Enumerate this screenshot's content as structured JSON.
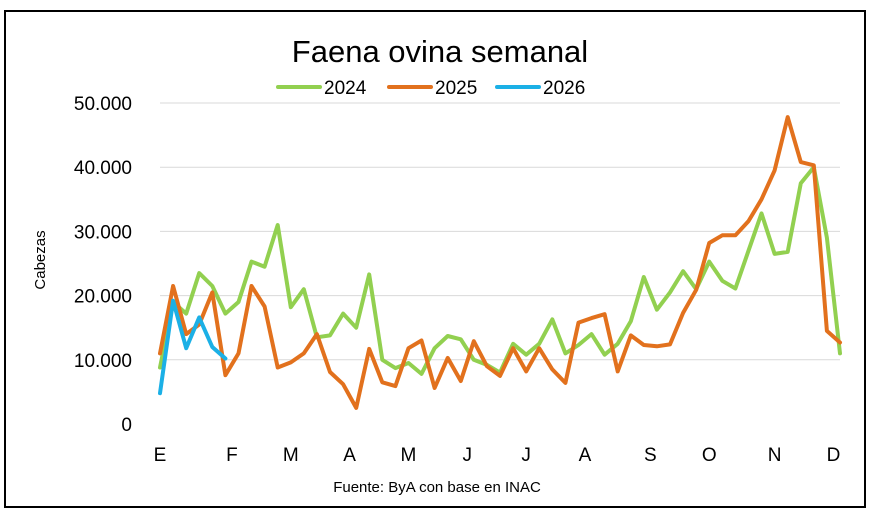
{
  "chart_data": {
    "type": "line",
    "title": "Faena ovina semanal",
    "ylabel": "Cabezas",
    "xlabel": "",
    "source": "Fuente: ByA con base en INAC",
    "ylim": [
      0,
      50000
    ],
    "yticks": [
      {
        "value": 0,
        "label": "0"
      },
      {
        "value": 10000,
        "label": "10.000"
      },
      {
        "value": 20000,
        "label": "20.000"
      },
      {
        "value": 30000,
        "label": "30.000"
      },
      {
        "value": 40000,
        "label": "40.000"
      },
      {
        "value": 50000,
        "label": "50.000"
      }
    ],
    "weeks": 53,
    "xticks": [
      {
        "week": 1,
        "label": "E"
      },
      {
        "week": 6.5,
        "label": "F"
      },
      {
        "week": 11,
        "label": "M"
      },
      {
        "week": 15.5,
        "label": "A"
      },
      {
        "week": 20,
        "label": "M"
      },
      {
        "week": 24.5,
        "label": "J"
      },
      {
        "week": 29,
        "label": "J"
      },
      {
        "week": 33.5,
        "label": "A"
      },
      {
        "week": 38.5,
        "label": "S"
      },
      {
        "week": 43,
        "label": "O"
      },
      {
        "week": 48,
        "label": "N"
      },
      {
        "week": 52.5,
        "label": "D"
      }
    ],
    "grid": true,
    "legend_position": "top",
    "series": [
      {
        "name": "2024",
        "color": "#92d050",
        "values": [
          8800,
          19000,
          17200,
          23500,
          21500,
          17200,
          19000,
          25300,
          24500,
          31000,
          18200,
          21000,
          13500,
          13800,
          17200,
          15000,
          23300,
          10000,
          8700,
          9500,
          7800,
          11800,
          13700,
          13200,
          10000,
          9200,
          8000,
          12500,
          10800,
          12500,
          16300,
          11000,
          12300,
          14000,
          10800,
          12500,
          16000,
          22900,
          17800,
          20500,
          23800,
          21000,
          25300,
          22300,
          21100,
          27000,
          32800,
          26500,
          26800,
          37500,
          40000,
          29000,
          11000
        ]
      },
      {
        "name": "2025",
        "color": "#e2711d",
        "values": [
          11000,
          21500,
          14000,
          15500,
          20500,
          7600,
          11000,
          21500,
          18300,
          8800,
          9600,
          11000,
          14000,
          8100,
          6200,
          2500,
          11700,
          6500,
          5900,
          11800,
          13000,
          5600,
          10300,
          6700,
          12900,
          9000,
          7500,
          11800,
          8200,
          11800,
          8500,
          6400,
          15800,
          16500,
          17100,
          8200,
          13800,
          12300,
          12100,
          12400,
          17300,
          20900,
          28200,
          29400,
          29400,
          31600,
          35000,
          39500,
          47800,
          40800,
          40300,
          14500,
          12700
        ]
      },
      {
        "name": "2026",
        "color": "#1bb0e6",
        "values": [
          4800,
          19200,
          11800,
          16600,
          12000,
          10200
        ]
      }
    ]
  }
}
